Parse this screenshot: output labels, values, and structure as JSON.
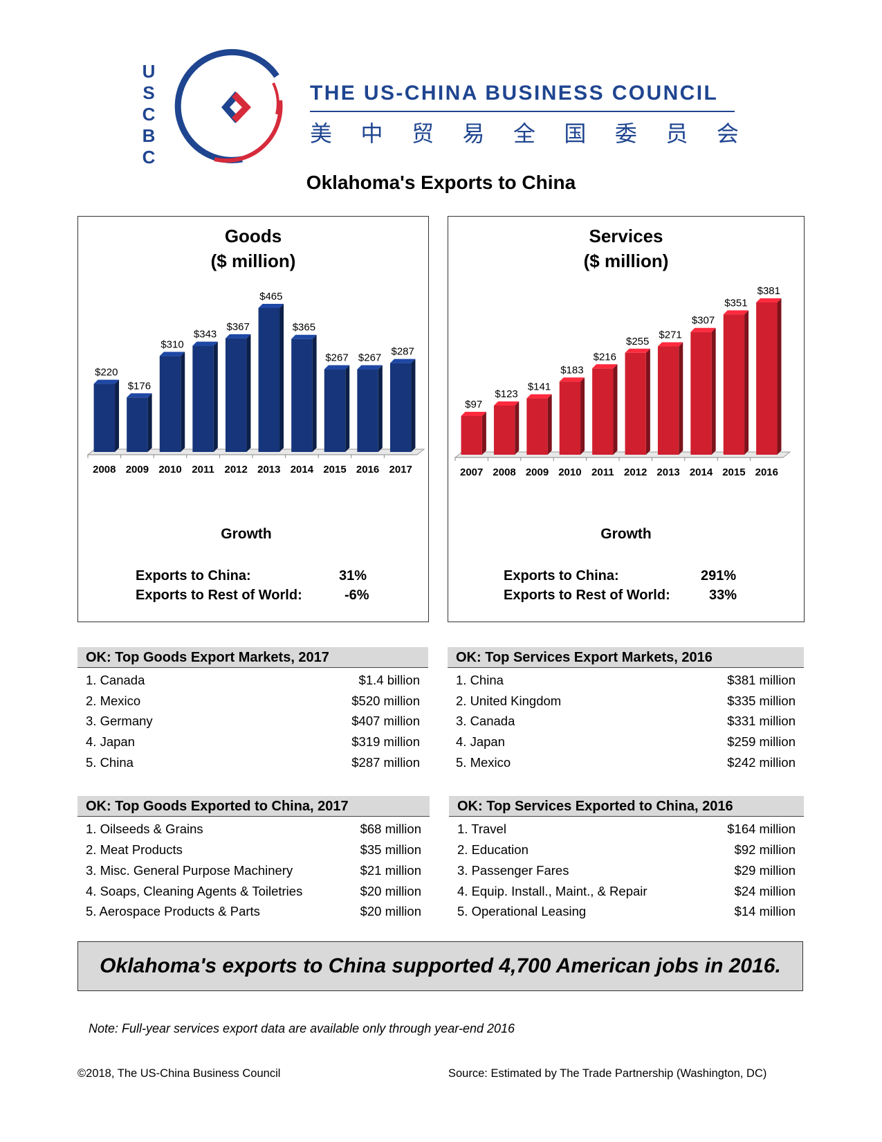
{
  "header": {
    "logo_letters": [
      "U",
      "S",
      "C",
      "B",
      "C"
    ],
    "org_name": "THE US-CHINA BUSINESS COUNCIL",
    "org_name_chinese": [
      "美",
      "中",
      "贸",
      "易",
      "全",
      "国",
      "委",
      "员",
      "会"
    ],
    "brand_blue": "#1f4590",
    "brand_red": "#d62b3b"
  },
  "page_title": "Oklahoma's Exports to China",
  "goods": {
    "title_line1": "Goods",
    "title_line2": "($ million)",
    "growth_title": "Growth",
    "growth_rows": [
      {
        "label": "Exports to China:",
        "value": "31%"
      },
      {
        "label": "Exports to Rest of World:",
        "value": "-6%"
      }
    ]
  },
  "services": {
    "title_line1": "Services",
    "title_line2": "($ million)",
    "growth_title": "Growth",
    "growth_rows": [
      {
        "label": "Exports to China:",
        "value": "291%"
      },
      {
        "label": "Exports to Rest of World:",
        "value": "33%"
      }
    ]
  },
  "chart_data": [
    {
      "type": "bar",
      "title": "Goods ($ million)",
      "categories": [
        "2008",
        "2009",
        "2010",
        "2011",
        "2012",
        "2013",
        "2014",
        "2015",
        "2016",
        "2017"
      ],
      "values": [
        220,
        176,
        310,
        343,
        367,
        465,
        365,
        267,
        267,
        287
      ],
      "labels": [
        "$220",
        "$176",
        "$310",
        "$343",
        "$367",
        "$465",
        "$365",
        "$267",
        "$267",
        "$287"
      ],
      "ylim": [
        0,
        500
      ],
      "color": "#16357a",
      "grid": false
    },
    {
      "type": "bar",
      "title": "Services ($ million)",
      "categories": [
        "2007",
        "2008",
        "2009",
        "2010",
        "2011",
        "2012",
        "2013",
        "2014",
        "2015",
        "2016"
      ],
      "values": [
        97,
        123,
        141,
        183,
        216,
        255,
        271,
        307,
        351,
        381
      ],
      "labels": [
        "$97",
        "$123",
        "$141",
        "$183",
        "$216",
        "$255",
        "$271",
        "$307",
        "$351",
        "$381"
      ],
      "ylim": [
        0,
        400
      ],
      "color": "#d01f2e",
      "grid": false
    }
  ],
  "tables": {
    "goods_markets": {
      "title": "OK: Top Goods Export Markets, 2017",
      "rows": [
        {
          "label": "1. Canada",
          "value": "$1.4 billion"
        },
        {
          "label": "2. Mexico",
          "value": "$520 million"
        },
        {
          "label": "3. Germany",
          "value": "$407 million"
        },
        {
          "label": "4. Japan",
          "value": "$319 million"
        },
        {
          "label": "5. China",
          "value": "$287 million"
        }
      ]
    },
    "services_markets": {
      "title": "OK: Top Services Export Markets, 2016",
      "rows": [
        {
          "label": "1. China",
          "value": "$381 million"
        },
        {
          "label": "2. United Kingdom",
          "value": "$335 million"
        },
        {
          "label": "3. Canada",
          "value": "$331 million"
        },
        {
          "label": "4. Japan",
          "value": "$259 million"
        },
        {
          "label": "5. Mexico",
          "value": "$242 million"
        }
      ]
    },
    "goods_to_china": {
      "title": "OK: Top Goods Exported to China, 2017",
      "rows": [
        {
          "label": "1. Oilseeds & Grains",
          "value": "$68 million"
        },
        {
          "label": "2. Meat Products",
          "value": "$35 million"
        },
        {
          "label": "3. Misc. General Purpose Machinery",
          "value": "$21 million"
        },
        {
          "label": "4. Soaps, Cleaning Agents & Toiletries",
          "value": "$20 million"
        },
        {
          "label": "5. Aerospace Products & Parts",
          "value": "$20 million"
        }
      ]
    },
    "services_to_china": {
      "title": "OK: Top Services Exported to China, 2016",
      "rows": [
        {
          "label": "1. Travel",
          "value": "$164 million"
        },
        {
          "label": "2. Education",
          "value": "$92 million"
        },
        {
          "label": "3. Passenger Fares",
          "value": "$29 million"
        },
        {
          "label": "4. Equip. Install., Maint., & Repair",
          "value": "$24 million"
        },
        {
          "label": "5. Operational Leasing",
          "value": "$14 million"
        }
      ]
    }
  },
  "banner": "Oklahoma's exports to China supported 4,700 American jobs in 2016.",
  "note": "Note: Full-year services export data are available only through year-end 2016",
  "footer": {
    "copyright": "©2018, The US-China Business Council",
    "source": "Source: Estimated by The Trade Partnership (Washington, DC)"
  }
}
